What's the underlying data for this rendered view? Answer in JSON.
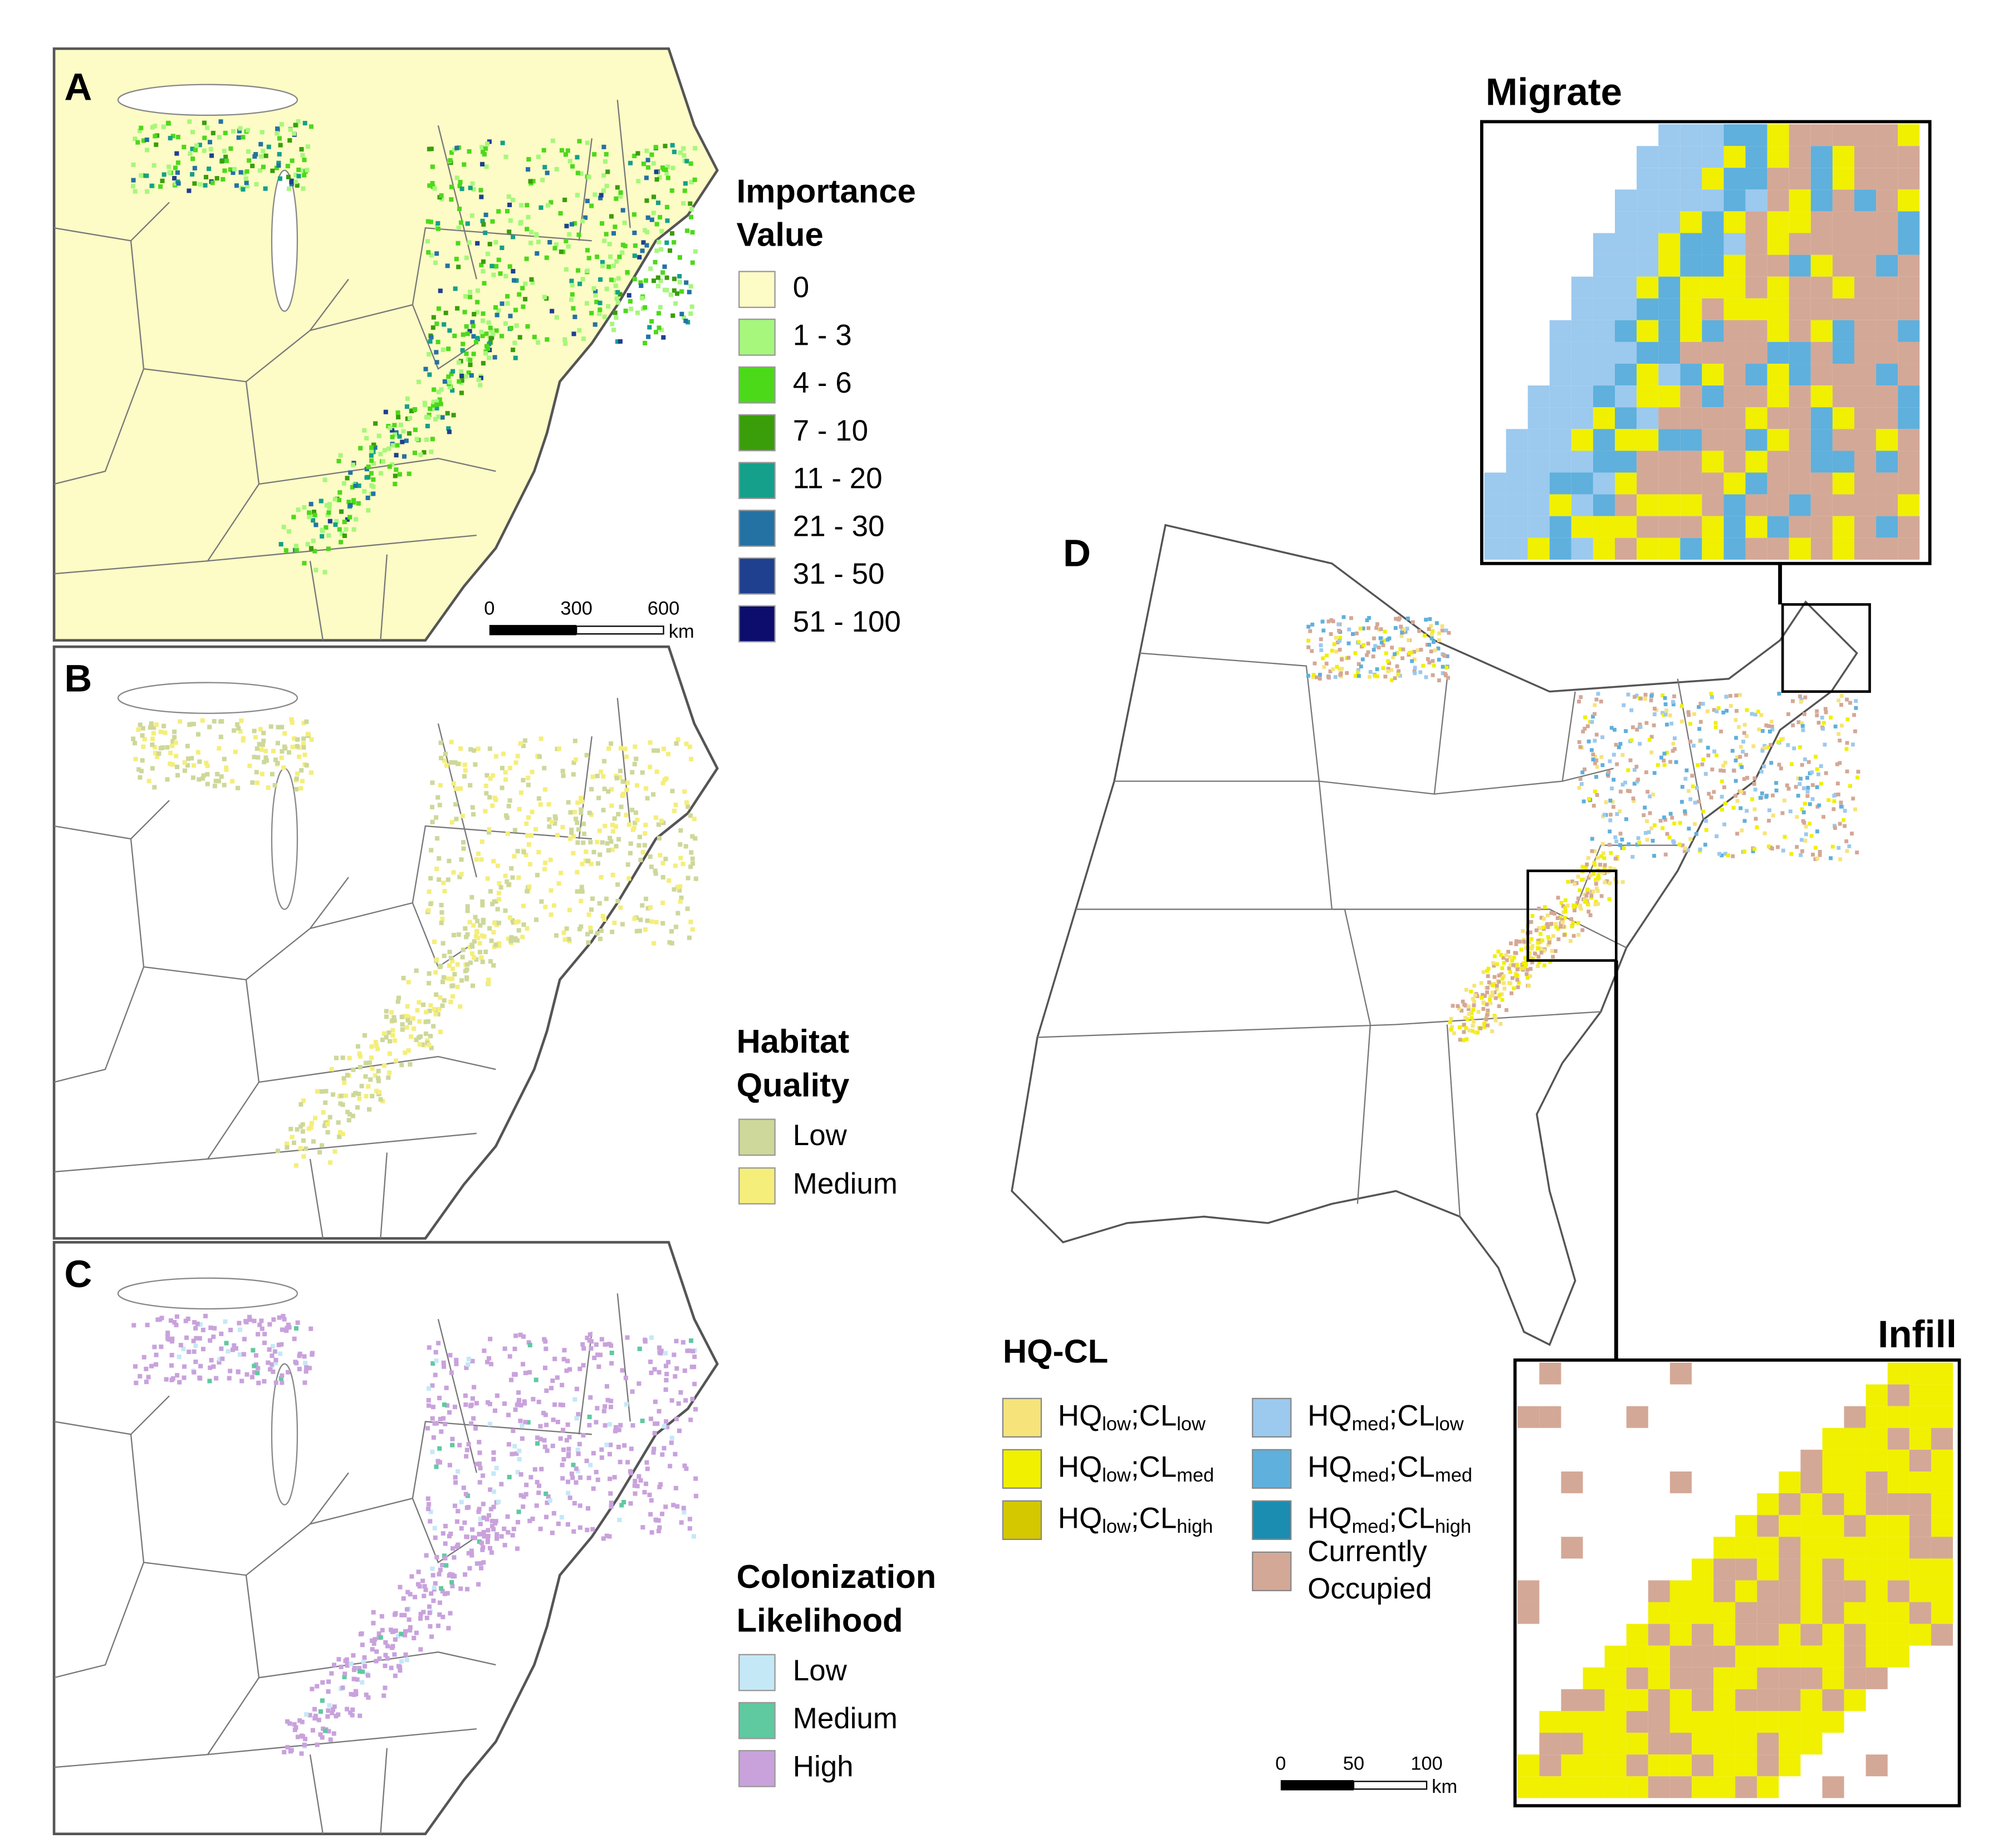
{
  "panels": {
    "a": {
      "letter": "A",
      "legend": {
        "title": "Importance Value",
        "items": [
          {
            "label": "0",
            "color": "#fdfbc6"
          },
          {
            "label": "1 - 3",
            "color": "#a6f77c"
          },
          {
            "label": "4 - 6",
            "color": "#4cd91a"
          },
          {
            "label": "7 - 10",
            "color": "#3a9e0a"
          },
          {
            "label": "11 - 20",
            "color": "#14a08a"
          },
          {
            "label": "21 - 30",
            "color": "#2472a4"
          },
          {
            "label": "31 - 50",
            "color": "#1f3f8f"
          },
          {
            "label": "51 - 100",
            "color": "#0d0d6e"
          }
        ]
      },
      "scale": {
        "ticks": [
          "0",
          "300",
          "600"
        ],
        "unit": "km"
      }
    },
    "b": {
      "letter": "B",
      "legend": {
        "title": "Habitat Quality",
        "items": [
          {
            "label": "Low",
            "color": "#cdd89a"
          },
          {
            "label": "Medium",
            "color": "#f5ee7a"
          }
        ]
      }
    },
    "c": {
      "letter": "C",
      "legend": {
        "title": "Colonization Likelihood",
        "items": [
          {
            "label": "Low",
            "color": "#c5e8f7"
          },
          {
            "label": "Medium",
            "color": "#5fc9a0"
          },
          {
            "label": "High",
            "color": "#c9a2dc"
          }
        ]
      }
    },
    "d": {
      "letter": "D",
      "insets": {
        "migrate": "Migrate",
        "infill": "Infill"
      },
      "legend": {
        "title": "HQ-CL",
        "items": [
          {
            "parts": [
              "HQ",
              "low",
              ";CL",
              "low"
            ],
            "color": "#f6e47a"
          },
          {
            "parts": [
              "HQ",
              "low",
              ";CL",
              "med"
            ],
            "color": "#f0f000"
          },
          {
            "parts": [
              "HQ",
              "low",
              ";CL",
              "high"
            ],
            "color": "#d4c800"
          },
          {
            "parts": [
              "HQ",
              "med",
              ";CL",
              "low"
            ],
            "color": "#9cc9ee"
          },
          {
            "parts": [
              "HQ",
              "med",
              ";CL",
              "med"
            ],
            "color": "#5fb0dc"
          },
          {
            "parts": [
              "HQ",
              "med",
              ";CL",
              "high"
            ],
            "color": "#1b8db0"
          },
          {
            "label": "Currently Occupied",
            "color": "#d4a896"
          }
        ]
      },
      "scale": {
        "ticks": [
          "0",
          "50",
          "100"
        ],
        "unit": "km"
      }
    }
  }
}
